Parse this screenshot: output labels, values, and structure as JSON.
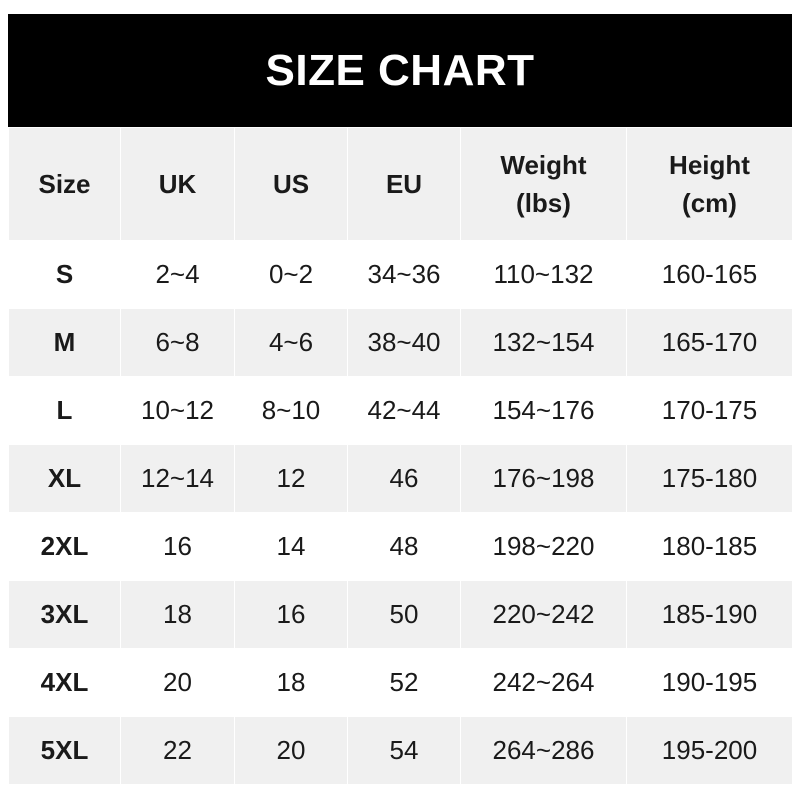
{
  "title": "SIZE CHART",
  "headers": [
    "Size",
    "UK",
    "US",
    "EU",
    "Weight\n(lbs)",
    "Height\n(cm)"
  ],
  "header_lines": [
    [
      "Size"
    ],
    [
      "UK"
    ],
    [
      "US"
    ],
    [
      "EU"
    ],
    [
      "Weight",
      "(lbs)"
    ],
    [
      "Height",
      "(cm)"
    ]
  ],
  "rows": [
    [
      "S",
      "2~4",
      "0~2",
      "34~36",
      "110~132",
      "160-165"
    ],
    [
      "M",
      "6~8",
      "4~6",
      "38~40",
      "132~154",
      "165-170"
    ],
    [
      "L",
      "10~12",
      "8~10",
      "42~44",
      "154~176",
      "170-175"
    ],
    [
      "XL",
      "12~14",
      "12",
      "46",
      "176~198",
      "175-180"
    ],
    [
      "2XL",
      "16",
      "14",
      "48",
      "198~220",
      "180-185"
    ],
    [
      "3XL",
      "18",
      "16",
      "50",
      "220~242",
      "185-190"
    ],
    [
      "4XL",
      "20",
      "18",
      "52",
      "242~264",
      "190-195"
    ],
    [
      "5XL",
      "22",
      "20",
      "54",
      "264~286",
      "195-200"
    ]
  ],
  "colors": {
    "title_bg": "#000000",
    "title_text": "#ffffff",
    "stripe": "#f0f0f0",
    "text": "#1a1a1a"
  }
}
